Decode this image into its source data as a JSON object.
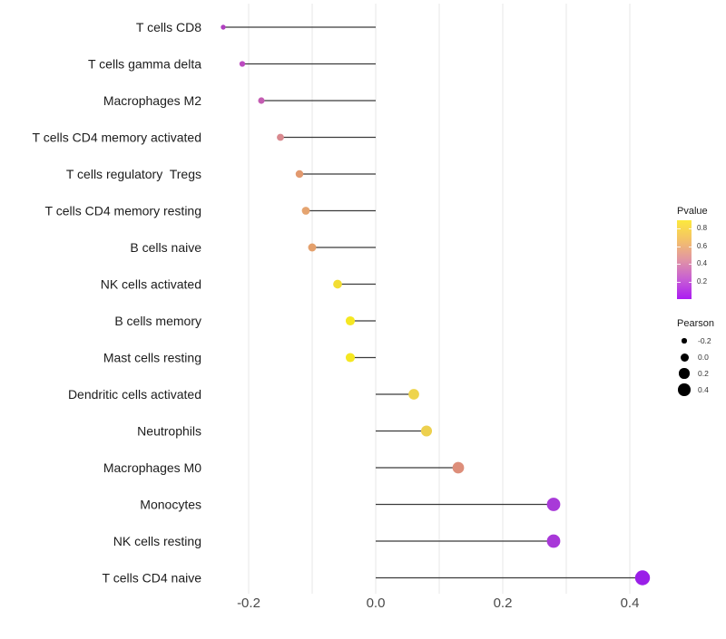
{
  "chart_data": {
    "type": "scatter",
    "variant": "horizontal-lollipop",
    "title": "",
    "xlabel": "",
    "ylabel": "",
    "grid": true,
    "background": "#ffffff",
    "categories": [
      "T cells CD8",
      "T cells gamma delta",
      "Macrophages M2",
      "T cells CD4 memory activated",
      "T cells regulatory  Tregs",
      "T cells CD4 memory resting",
      "B cells naive",
      "NK cells activated",
      "B cells memory",
      "Mast cells resting",
      "Dendritic cells activated",
      "Neutrophils",
      "Macrophages M0",
      "Monocytes",
      "NK cells resting",
      "T cells CD4 naive"
    ],
    "series": [
      {
        "name": "Pearson",
        "values": [
          -0.24,
          -0.21,
          -0.18,
          -0.15,
          -0.12,
          -0.11,
          -0.1,
          -0.06,
          -0.04,
          -0.04,
          0.06,
          0.08,
          0.13,
          0.28,
          0.28,
          0.42
        ]
      }
    ],
    "point_colors": [
      "#b03fc0",
      "#bc4ac0",
      "#c45cb2",
      "#d9898f",
      "#e2996f",
      "#e5a470",
      "#e4a06c",
      "#f2dd33",
      "#f5e722",
      "#f5e722",
      "#eed44c",
      "#edd04e",
      "#dd8e7a",
      "#a83ad8",
      "#a838d8",
      "#9a1fe8"
    ],
    "xlim": [
      -0.27,
      0.46
    ],
    "x_axis_ticks": [
      "-0.2",
      "0.0",
      "0.2",
      "0.4"
    ],
    "x_tick_values": [
      -0.2,
      0.0,
      0.2,
      0.4
    ],
    "grid_tick_values": [
      -0.2,
      -0.1,
      0.0,
      0.1,
      0.2,
      0.3,
      0.4
    ],
    "stem_color": "#3b3b3b",
    "gridline_color": "#e9e9e9",
    "axis_text_color": "#4a4a4a",
    "category_text_color": "#1c1c1c",
    "legends": {
      "pvalue": {
        "title": "Pvalue",
        "tick_labels": [
          "0.8",
          "0.6",
          "0.4",
          "0.2"
        ],
        "gradient": [
          "#fce93d",
          "#f4c169",
          "#e195a4",
          "#c75ed4",
          "#ab1bf2"
        ]
      },
      "pearson": {
        "title": "Pearson",
        "tick_labels": [
          "-0.2",
          "0.0",
          "0.2",
          "0.4"
        ],
        "tick_values": [
          -0.2,
          0.0,
          0.2,
          0.4
        ],
        "dot_color": "#000000"
      }
    }
  }
}
